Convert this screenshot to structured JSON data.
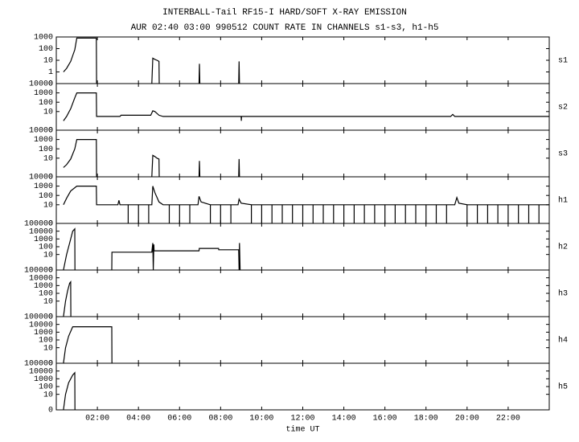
{
  "header": {
    "title": "INTERBALL-Tail RF15-I HARD/SOFT X-RAY EMISSION",
    "subtitle": "AUR 02:40 03:00 990512  COUNT RATE IN CHANNELS s1-s3, h1-h5"
  },
  "chart_data": [
    {
      "type": "line",
      "label": "s1",
      "yscale": "symlog",
      "color": "#000000",
      "xlim": [
        0,
        24
      ],
      "ylim": [
        0,
        1000
      ],
      "yticks": [
        0,
        1,
        10,
        100,
        1000
      ],
      "x": [
        0.35,
        0.5,
        0.7,
        0.9,
        1.0,
        1.95,
        1.96,
        3,
        4.65,
        4.7,
        4.8,
        4.9,
        5.0,
        5.01,
        6,
        6.95,
        6.97,
        6.99,
        8,
        8.88,
        8.9,
        8.92,
        9
      ],
      "values": [
        1,
        2,
        8,
        80,
        800,
        800,
        0,
        null,
        0,
        15,
        12,
        10,
        8,
        0,
        null,
        0,
        5,
        0,
        null,
        0,
        8,
        0,
        null
      ]
    },
    {
      "type": "line",
      "label": "s2",
      "yscale": "symlog",
      "color": "#000000",
      "xlim": [
        0,
        24
      ],
      "ylim": [
        0,
        10000
      ],
      "yticks": [
        0,
        10,
        100,
        1000,
        10000
      ],
      "x": [
        0.35,
        0.5,
        0.7,
        0.9,
        1.0,
        1.95,
        1.96,
        3.1,
        3.15,
        4.6,
        4.7,
        4.8,
        5.0,
        5.2,
        7,
        9,
        9.01,
        9.02,
        12,
        16,
        19.2,
        19.3,
        19.4,
        22,
        24
      ],
      "values": [
        1,
        3,
        20,
        300,
        1000,
        1000,
        3,
        3,
        4,
        4,
        12,
        10,
        4,
        3,
        3,
        3,
        1,
        3,
        3,
        3,
        3,
        5,
        3,
        3,
        3
      ]
    },
    {
      "type": "line",
      "label": "s3",
      "yscale": "symlog",
      "color": "#000000",
      "xlim": [
        0,
        24
      ],
      "ylim": [
        0,
        10000
      ],
      "yticks": [
        0,
        10,
        100,
        1000,
        10000
      ],
      "x": [
        0.35,
        0.5,
        0.7,
        0.9,
        1.0,
        1.95,
        1.96,
        3,
        4.65,
        4.7,
        4.8,
        4.9,
        5.0,
        5.01,
        6,
        6.95,
        6.97,
        6.99,
        8,
        8.88,
        8.9,
        8.92,
        9
      ],
      "values": [
        1,
        2,
        8,
        100,
        1000,
        1000,
        0,
        null,
        0,
        20,
        15,
        10,
        8,
        0,
        null,
        0,
        5,
        0,
        null,
        0,
        8,
        0,
        null
      ]
    },
    {
      "type": "line",
      "label": "h1",
      "yscale": "symlog",
      "color": "#000000",
      "xlim": [
        0,
        24
      ],
      "ylim": [
        0,
        10000
      ],
      "yticks": [
        0,
        10,
        100,
        1000,
        10000
      ],
      "x": [
        0.35,
        0.5,
        0.7,
        1.0,
        1.95,
        1.96,
        3.0,
        3.05,
        3.1,
        3.5,
        3.5,
        3.5,
        4.0,
        4.0,
        4.0,
        4.5,
        4.5,
        4.5,
        4.65,
        4.7,
        4.8,
        5.0,
        5.2,
        5.5,
        5.5,
        5.5,
        6.0,
        6.0,
        6.0,
        6.5,
        6.5,
        6.5,
        6.9,
        6.95,
        7.05,
        7.5,
        7.5,
        7.5,
        8.0,
        8.0,
        8.0,
        8.5,
        8.5,
        8.5,
        8.85,
        8.9,
        9.0,
        9.5,
        9.5,
        9.5,
        10.0,
        10.0,
        10.0,
        10.5,
        10.5,
        10.5,
        11.0,
        11.0,
        11.0,
        11.5,
        11.5,
        11.5,
        12.0,
        12.0,
        12.0,
        12.5,
        12.5,
        12.5,
        13.0,
        13.0,
        13.0,
        13.5,
        13.5,
        13.5,
        14.0,
        14.0,
        14.0,
        14.5,
        14.5,
        14.5,
        15.0,
        15.0,
        15.0,
        15.5,
        15.5,
        15.5,
        16.0,
        16.0,
        16.0,
        16.5,
        16.5,
        16.5,
        17.0,
        17.0,
        17.0,
        17.5,
        17.5,
        17.5,
        18.0,
        18.0,
        18.0,
        18.5,
        18.5,
        18.5,
        19.0,
        19.0,
        19.0,
        19.4,
        19.5,
        19.6,
        20.0,
        20.0,
        20.0,
        20.5,
        20.5,
        20.5,
        21.0,
        21.0,
        21.0,
        21.5,
        21.5,
        21.5,
        22.0,
        22.0,
        22.0,
        22.5,
        22.5,
        22.5,
        23.0,
        23.0,
        23.0,
        23.5,
        23.5,
        23.5,
        24
      ],
      "values": [
        10,
        50,
        300,
        1000,
        1000,
        10,
        10,
        30,
        10,
        10,
        0,
        10,
        10,
        0,
        10,
        10,
        0,
        10,
        10,
        1000,
        200,
        20,
        10,
        10,
        0,
        10,
        10,
        0,
        10,
        10,
        0,
        10,
        10,
        80,
        20,
        10,
        0,
        10,
        10,
        0,
        10,
        10,
        0,
        10,
        10,
        40,
        15,
        10,
        0,
        10,
        10,
        0,
        10,
        10,
        0,
        10,
        10,
        0,
        10,
        10,
        0,
        10,
        10,
        0,
        10,
        10,
        0,
        10,
        10,
        0,
        10,
        10,
        0,
        10,
        10,
        0,
        10,
        10,
        0,
        10,
        10,
        0,
        10,
        10,
        0,
        10,
        10,
        0,
        10,
        10,
        0,
        10,
        10,
        0,
        10,
        10,
        0,
        10,
        10,
        0,
        10,
        10,
        0,
        10,
        10,
        0,
        10,
        10,
        60,
        15,
        10,
        0,
        10,
        10,
        0,
        10,
        10,
        0,
        10,
        10,
        0,
        10,
        10,
        0,
        10,
        10,
        0,
        10,
        10,
        0,
        10,
        10,
        0,
        10,
        10
      ]
    },
    {
      "type": "line",
      "label": "h2",
      "yscale": "symlog",
      "color": "#000000",
      "xlim": [
        0,
        24
      ],
      "ylim": [
        0,
        100000
      ],
      "yticks": [
        0,
        10,
        100,
        1000,
        10000,
        100000
      ],
      "x": [
        0.35,
        0.5,
        0.65,
        0.8,
        0.9,
        0.91,
        2,
        2.7,
        2.71,
        4.65,
        4.7,
        4.72,
        4.75,
        4.76,
        4.78,
        6.95,
        6.96,
        7.9,
        7.91,
        8.88,
        8.9,
        8.92,
        8.95
      ],
      "values": [
        0,
        10,
        300,
        10000,
        20000,
        0,
        null,
        0,
        20,
        20,
        300,
        0,
        200,
        30,
        30,
        30,
        60,
        60,
        40,
        40,
        0,
        300,
        0
      ]
    },
    {
      "type": "line",
      "label": "h3",
      "yscale": "symlog",
      "color": "#000000",
      "xlim": [
        0,
        24
      ],
      "ylim": [
        0,
        100000
      ],
      "yticks": [
        0,
        10,
        100,
        1000,
        10000,
        100000
      ],
      "x": [
        0.35,
        0.45,
        0.55,
        0.65,
        0.7,
        0.71
      ],
      "values": [
        0,
        10,
        200,
        2000,
        3000,
        0
      ]
    },
    {
      "type": "line",
      "label": "h4",
      "yscale": "symlog",
      "color": "#000000",
      "xlim": [
        0,
        24
      ],
      "ylim": [
        0,
        100000
      ],
      "yticks": [
        0,
        10,
        100,
        1000,
        10000,
        100000
      ],
      "x": [
        0.35,
        0.45,
        0.6,
        0.8,
        2.7,
        2.71
      ],
      "values": [
        0,
        10,
        300,
        5000,
        5000,
        0
      ]
    },
    {
      "type": "line",
      "label": "h5",
      "yscale": "symlog",
      "color": "#000000",
      "xlim": [
        0,
        24
      ],
      "ylim": [
        0,
        100000
      ],
      "yticks": [
        0,
        10,
        100,
        1000,
        10000,
        100000
      ],
      "x": [
        0.35,
        0.45,
        0.6,
        0.8,
        0.9,
        0.91
      ],
      "values": [
        0,
        10,
        300,
        3000,
        6000,
        0
      ],
      "xlabel": "time UT",
      "xticks": [
        {
          "value": 2,
          "label": "02:00"
        },
        {
          "value": 4,
          "label": "04:00"
        },
        {
          "value": 6,
          "label": "06:00"
        },
        {
          "value": 8,
          "label": "08:00"
        },
        {
          "value": 10,
          "label": "10:00"
        },
        {
          "value": 12,
          "label": "12:00"
        },
        {
          "value": 14,
          "label": "14:00"
        },
        {
          "value": 16,
          "label": "16:00"
        },
        {
          "value": 18,
          "label": "18:00"
        },
        {
          "value": 20,
          "label": "20:00"
        },
        {
          "value": 22,
          "label": "22:00"
        }
      ]
    }
  ]
}
